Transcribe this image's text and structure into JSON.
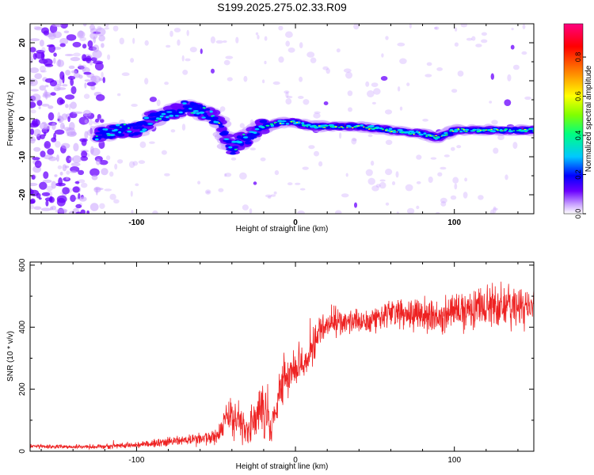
{
  "title": "S199.2025.275.02.33.R09",
  "chart_data": [
    {
      "type": "heatmap",
      "title": "S199.2025.275.02.33.R09",
      "xlabel": "Height of straight line (km)",
      "ylabel": "Frequency (Hz)",
      "xlim": [
        -167,
        150
      ],
      "ylim": [
        -25,
        25
      ],
      "xticks": [
        -100,
        0,
        100
      ],
      "xtick_labels": [
        "-100",
        "0",
        "100"
      ],
      "yticks": [
        -20,
        -10,
        0,
        10,
        20
      ],
      "ytick_labels": [
        "-20",
        "-10",
        "0",
        "10",
        "20"
      ],
      "colorbar": {
        "label": "Normalized spectral amplitude",
        "range": [
          0,
          1
        ],
        "ticks": [
          0.0,
          0.2,
          0.4,
          0.6,
          0.8
        ],
        "tick_labels": [
          "0.0",
          "0.2",
          "0.4",
          "0.6",
          "0.8"
        ],
        "colors": [
          "#ffffff",
          "#c8a0ff",
          "#6a00ff",
          "#0000ff",
          "#00c8ff",
          "#00ff80",
          "#80ff00",
          "#ffff00",
          "#ff8000",
          "#ff0000",
          "#ff0080"
        ]
      },
      "ridge": {
        "name": "dominant frequency",
        "x": [
          -125,
          -110,
          -100,
          -90,
          -80,
          -70,
          -60,
          -50,
          -45,
          -40,
          -35,
          -30,
          -25,
          -20,
          -10,
          0,
          10,
          20,
          40,
          60,
          80,
          90,
          100,
          120,
          150
        ],
        "freq": [
          -4,
          -3,
          -3,
          0,
          1,
          3,
          2,
          0,
          -4,
          -8,
          -6,
          -5,
          -3,
          -2,
          -1,
          -1,
          -2,
          -2,
          -2,
          -3,
          -4,
          -5,
          -3,
          -3,
          -3
        ]
      },
      "noise_region": [
        -167,
        -120
      ]
    },
    {
      "type": "line",
      "xlabel": "Height of straight line (km)",
      "ylabel": "SNR (10 * v/v)",
      "xlim": [
        -167,
        150
      ],
      "ylim": [
        0,
        610
      ],
      "xticks": [
        -100,
        0,
        100
      ],
      "xtick_labels": [
        "-100",
        "0",
        "100"
      ],
      "yticks": [
        0,
        200,
        400,
        600
      ],
      "ytick_labels": [
        "0",
        "200",
        "400",
        "600"
      ],
      "series": [
        {
          "name": "SNR",
          "color": "#ee2222",
          "envelope_x": [
            -167,
            -140,
            -120,
            -100,
            -80,
            -60,
            -50,
            -40,
            -35,
            -30,
            -25,
            -20,
            -15,
            -10,
            -5,
            0,
            5,
            10,
            15,
            20,
            25,
            30,
            40,
            50,
            60,
            70,
            80,
            90,
            100,
            110,
            120,
            130,
            140,
            150
          ],
          "envelope_mean": [
            15,
            15,
            15,
            20,
            30,
            40,
            50,
            120,
            100,
            70,
            100,
            150,
            80,
            200,
            250,
            280,
            300,
            320,
            380,
            400,
            420,
            410,
            420,
            430,
            450,
            440,
            440,
            430,
            450,
            460,
            460,
            470,
            460,
            470
          ],
          "envelope_spread": [
            8,
            8,
            10,
            12,
            20,
            25,
            35,
            90,
            80,
            60,
            80,
            120,
            70,
            90,
            80,
            70,
            70,
            70,
            60,
            60,
            60,
            50,
            50,
            60,
            60,
            60,
            70,
            70,
            70,
            80,
            90,
            90,
            90,
            80
          ]
        }
      ]
    }
  ]
}
